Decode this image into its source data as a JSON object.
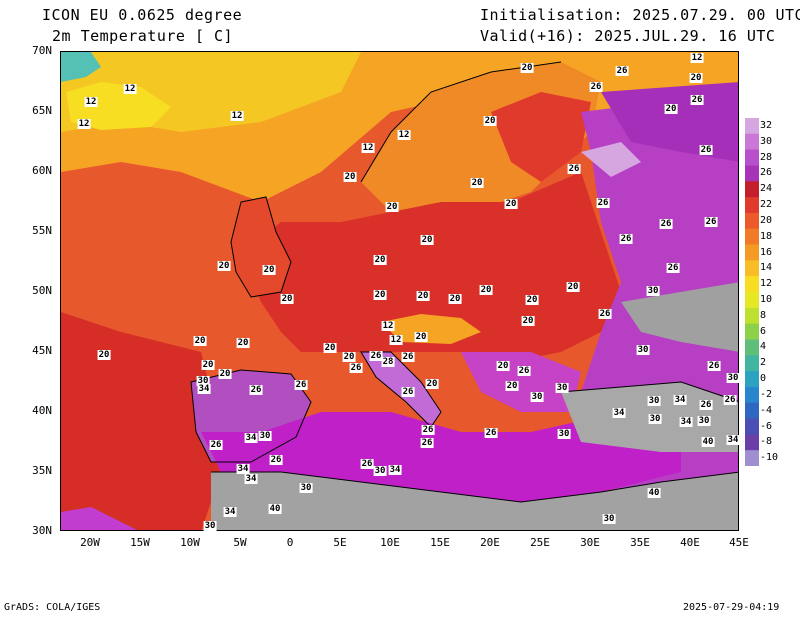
{
  "header": {
    "model": "ICON EU 0.0625 degree",
    "variable": "2m Temperature [ C]",
    "init": "Initialisation: 2025.07.29. 00 UTC",
    "valid": "Valid(+16): 2025.JUL.29. 16 UTC"
  },
  "axes": {
    "lat_labels": [
      "70N",
      "65N",
      "60N",
      "55N",
      "50N",
      "45N",
      "40N",
      "35N",
      "30N"
    ],
    "lon_labels": [
      "20W",
      "15W",
      "10W",
      "5W",
      "0",
      "5E",
      "10E",
      "15E",
      "20E",
      "25E",
      "30E",
      "35E",
      "40E",
      "45E"
    ]
  },
  "colorbar": {
    "labels": [
      "32",
      "30",
      "28",
      "26",
      "24",
      "22",
      "20",
      "18",
      "16",
      "14",
      "12",
      "10",
      "8",
      "6",
      "4",
      "2",
      "0",
      "-2",
      "-4",
      "-6",
      "-8",
      "-10"
    ],
    "colors": [
      "#d6a6e0",
      "#c978d6",
      "#b84fcb",
      "#a633b8",
      "#c21f2a",
      "#e03a2c",
      "#ec5a2c",
      "#f07a28",
      "#f59a25",
      "#f8bd24",
      "#f7de22",
      "#e6e826",
      "#bfe02e",
      "#8fd04a",
      "#5fbf7a",
      "#41b5a0",
      "#2aa2c0",
      "#2a86cc",
      "#2f68c0",
      "#4b4fb4",
      "#6a3fa8",
      "#9f8fd0"
    ]
  },
  "contour_labels": [
    {
      "t": "12"
    },
    {
      "t": "12"
    },
    {
      "t": "12"
    },
    {
      "t": "12"
    },
    {
      "t": "20"
    },
    {
      "t": "26"
    },
    {
      "t": "12"
    },
    {
      "t": "20"
    },
    {
      "t": "26"
    },
    {
      "t": "20"
    },
    {
      "t": "26"
    },
    {
      "t": "12"
    },
    {
      "t": "20"
    },
    {
      "t": "12"
    },
    {
      "t": "26"
    },
    {
      "t": "20"
    },
    {
      "t": "26"
    },
    {
      "t": "20"
    },
    {
      "t": "20"
    },
    {
      "t": "20"
    },
    {
      "t": "26"
    },
    {
      "t": "26"
    },
    {
      "t": "20"
    },
    {
      "t": "26"
    },
    {
      "t": "26"
    },
    {
      "t": "20"
    },
    {
      "t": "20"
    },
    {
      "t": "20"
    },
    {
      "t": "26"
    },
    {
      "t": "20"
    },
    {
      "t": "20"
    },
    {
      "t": "20"
    },
    {
      "t": "20"
    },
    {
      "t": "20"
    },
    {
      "t": "20"
    },
    {
      "t": "20"
    },
    {
      "t": "30"
    },
    {
      "t": "20"
    },
    {
      "t": "12"
    },
    {
      "t": "20"
    },
    {
      "t": "26"
    },
    {
      "t": "12"
    },
    {
      "t": "20"
    },
    {
      "t": "20"
    },
    {
      "t": "20"
    },
    {
      "t": "20"
    },
    {
      "t": "30"
    },
    {
      "t": "20"
    },
    {
      "t": "20"
    },
    {
      "t": "26"
    },
    {
      "t": "26"
    },
    {
      "t": "28"
    },
    {
      "t": "26"
    },
    {
      "t": "20"
    },
    {
      "t": "26"
    },
    {
      "t": "20"
    },
    {
      "t": "30"
    },
    {
      "t": "34"
    },
    {
      "t": "20"
    },
    {
      "t": "26"
    },
    {
      "t": "26"
    },
    {
      "t": "20"
    },
    {
      "t": "26"
    },
    {
      "t": "30"
    },
    {
      "t": "30"
    },
    {
      "t": "26"
    },
    {
      "t": "34"
    },
    {
      "t": "30"
    },
    {
      "t": "34"
    },
    {
      "t": "30"
    },
    {
      "t": "26"
    },
    {
      "t": "30"
    },
    {
      "t": "26"
    },
    {
      "t": "26"
    },
    {
      "t": "34"
    },
    {
      "t": "30"
    },
    {
      "t": "26"
    },
    {
      "t": "30"
    },
    {
      "t": "34"
    },
    {
      "t": "30"
    },
    {
      "t": "40"
    },
    {
      "t": "26"
    },
    {
      "t": "26"
    },
    {
      "t": "34"
    },
    {
      "t": "26"
    },
    {
      "t": "26"
    },
    {
      "t": "30"
    },
    {
      "t": "34"
    },
    {
      "t": "34"
    },
    {
      "t": "34"
    },
    {
      "t": "40"
    },
    {
      "t": "30"
    },
    {
      "t": "34"
    },
    {
      "t": "40"
    },
    {
      "t": "30"
    },
    {
      "t": "30"
    }
  ],
  "footer": {
    "left": "GrADS: COLA/IGES",
    "right": "2025-07-29-04:19"
  }
}
